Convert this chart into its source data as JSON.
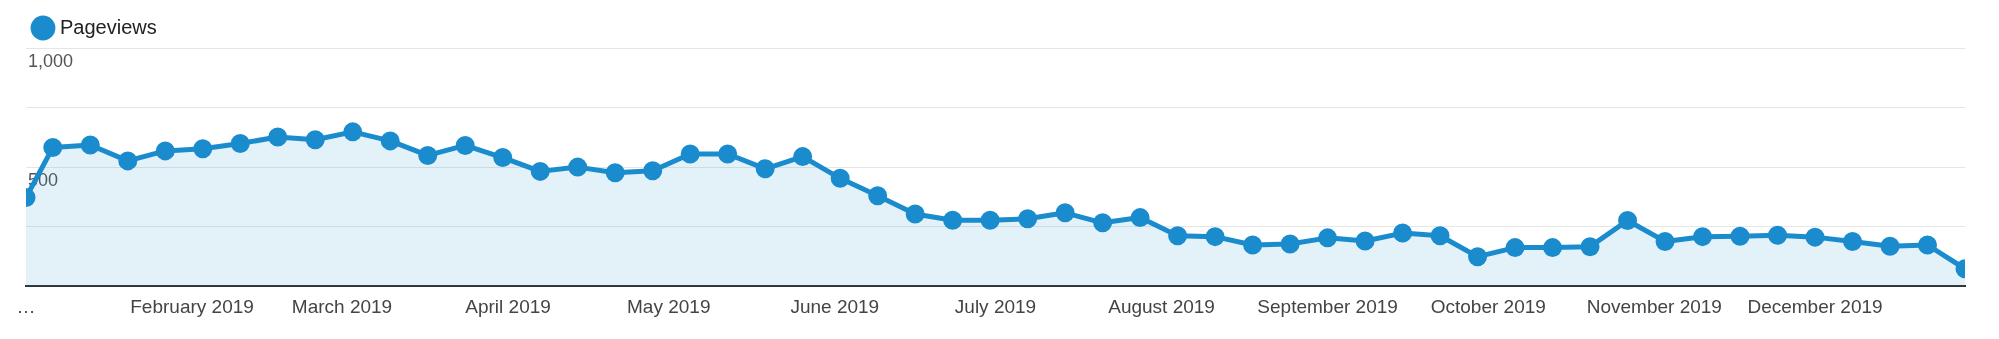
{
  "chart_data": {
    "type": "area",
    "x": [
      "2019-01-01",
      "2019-01-06",
      "2019-01-13",
      "2019-01-20",
      "2019-01-27",
      "2019-02-03",
      "2019-02-10",
      "2019-02-17",
      "2019-02-24",
      "2019-03-03",
      "2019-03-10",
      "2019-03-17",
      "2019-03-24",
      "2019-03-31",
      "2019-04-07",
      "2019-04-14",
      "2019-04-21",
      "2019-04-28",
      "2019-05-05",
      "2019-05-12",
      "2019-05-19",
      "2019-05-26",
      "2019-06-02",
      "2019-06-09",
      "2019-06-16",
      "2019-06-23",
      "2019-06-30",
      "2019-07-07",
      "2019-07-14",
      "2019-07-21",
      "2019-07-28",
      "2019-08-04",
      "2019-08-11",
      "2019-08-18",
      "2019-08-25",
      "2019-09-01",
      "2019-09-08",
      "2019-09-15",
      "2019-09-22",
      "2019-09-29",
      "2019-10-06",
      "2019-10-13",
      "2019-10-20",
      "2019-10-27",
      "2019-11-03",
      "2019-11-10",
      "2019-11-17",
      "2019-11-24",
      "2019-12-01",
      "2019-12-08",
      "2019-12-15",
      "2019-12-22",
      "2019-12-29"
    ],
    "series": [
      {
        "name": "Pageviews",
        "color": "#1a8cce",
        "values": [
          372,
          582,
          593,
          526,
          568,
          577,
          599,
          626,
          615,
          648,
          610,
          549,
          591,
          540,
          482,
          500,
          476,
          485,
          555,
          555,
          493,
          544,
          453,
          380,
          303,
          277,
          277,
          283,
          308,
          266,
          288,
          212,
          208,
          173,
          177,
          203,
          190,
          223,
          212,
          124,
          162,
          162,
          166,
          276,
          188,
          208,
          210,
          214,
          206,
          188,
          168,
          173,
          73
        ]
      }
    ],
    "xlim": [
      "2019-01-01",
      "2019-12-29"
    ],
    "xticks": [
      {
        "value": "2019-01-01",
        "label": "…"
      },
      {
        "value": "2019-02-01",
        "label": "February 2019"
      },
      {
        "value": "2019-03-01",
        "label": "March 2019"
      },
      {
        "value": "2019-04-01",
        "label": "April 2019"
      },
      {
        "value": "2019-05-01",
        "label": "May 2019"
      },
      {
        "value": "2019-06-01",
        "label": "June 2019"
      },
      {
        "value": "2019-07-01",
        "label": "July 2019"
      },
      {
        "value": "2019-08-01",
        "label": "August 2019"
      },
      {
        "value": "2019-09-01",
        "label": "September 2019"
      },
      {
        "value": "2019-10-01",
        "label": "October 2019"
      },
      {
        "value": "2019-11-01",
        "label": "November 2019"
      },
      {
        "value": "2019-12-01",
        "label": "December 2019"
      }
    ],
    "ylim": [
      0,
      1000
    ],
    "yticks": [
      {
        "value": 0,
        "label": null
      },
      {
        "value": 250,
        "label": null
      },
      {
        "value": 500,
        "label": "500"
      },
      {
        "value": 750,
        "label": null
      },
      {
        "value": 1000,
        "label": "1,000"
      }
    ],
    "grid": "y",
    "legend": "top left",
    "marker": "circle",
    "line_style": "solid"
  }
}
